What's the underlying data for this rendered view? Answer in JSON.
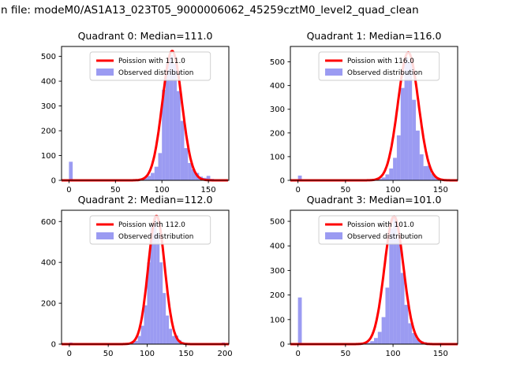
{
  "figure": {
    "title": "n file: modeM0/AS1A13_023T05_9000006062_45259cztM0_level2_quad_clean"
  },
  "colors": {
    "curve": "#ff0000",
    "bars": "#7a7aee",
    "axis": "#000000",
    "legend_border": "#cccccc"
  },
  "chart_data": [
    {
      "type": "bar",
      "subtype": "histogram-with-fit",
      "title": "Quadrant 0: Median=111.0",
      "median": 111.0,
      "legend": [
        {
          "kind": "line",
          "label": "Poission with 111.0"
        },
        {
          "kind": "patch",
          "label": "Observed distribution"
        }
      ],
      "xlim": [
        -8,
        172
      ],
      "ylim": [
        0,
        540
      ],
      "xticks": [
        0,
        50,
        100,
        150
      ],
      "yticks": [
        0,
        100,
        200,
        300,
        400,
        500
      ],
      "bin_width": 4,
      "bars": [
        [
          2,
          75
        ],
        [
          78,
          6
        ],
        [
          82,
          10
        ],
        [
          86,
          18
        ],
        [
          90,
          30
        ],
        [
          94,
          55
        ],
        [
          98,
          110
        ],
        [
          102,
          365
        ],
        [
          106,
          470
        ],
        [
          110,
          505
        ],
        [
          114,
          470
        ],
        [
          118,
          360
        ],
        [
          122,
          240
        ],
        [
          126,
          130
        ],
        [
          130,
          70
        ],
        [
          134,
          45
        ],
        [
          138,
          30
        ],
        [
          142,
          15
        ],
        [
          146,
          10
        ],
        [
          150,
          18
        ],
        [
          154,
          6
        ],
        [
          158,
          4
        ],
        [
          166,
          3
        ]
      ],
      "curve": {
        "shape": "poisson",
        "mu": 111.0,
        "sigma": 10.5,
        "peak": 522
      }
    },
    {
      "type": "bar",
      "subtype": "histogram-with-fit",
      "title": "Quadrant 1: Median=116.0",
      "median": 116.0,
      "legend": [
        {
          "kind": "line",
          "label": "Poission with 116.0"
        },
        {
          "kind": "patch",
          "label": "Observed distribution"
        }
      ],
      "xlim": [
        -8,
        168
      ],
      "ylim": [
        0,
        565
      ],
      "xticks": [
        0,
        50,
        100,
        150
      ],
      "yticks": [
        0,
        100,
        200,
        300,
        400,
        500
      ],
      "bin_width": 4,
      "bars": [
        [
          2,
          20
        ],
        [
          34,
          5
        ],
        [
          86,
          6
        ],
        [
          90,
          12
        ],
        [
          94,
          25
        ],
        [
          98,
          50
        ],
        [
          102,
          95
        ],
        [
          106,
          190
        ],
        [
          110,
          390
        ],
        [
          114,
          520
        ],
        [
          118,
          500
        ],
        [
          122,
          340
        ],
        [
          126,
          210
        ],
        [
          130,
          110
        ],
        [
          134,
          60
        ],
        [
          138,
          62
        ],
        [
          142,
          28
        ],
        [
          146,
          12
        ],
        [
          150,
          8
        ],
        [
          154,
          5
        ],
        [
          158,
          4
        ]
      ],
      "curve": {
        "shape": "poisson",
        "mu": 116.0,
        "sigma": 10.8,
        "peak": 540
      }
    },
    {
      "type": "bar",
      "subtype": "histogram-with-fit",
      "title": "Quadrant 2: Median=112.0",
      "median": 112.0,
      "legend": [
        {
          "kind": "line",
          "label": "Poission with 112.0"
        },
        {
          "kind": "patch",
          "label": "Observed distribution"
        }
      ],
      "xlim": [
        -10,
        205
      ],
      "ylim": [
        0,
        655
      ],
      "xticks": [
        0,
        50,
        100,
        150,
        200
      ],
      "yticks": [
        0,
        200,
        400,
        600
      ],
      "bin_width": 4,
      "bars": [
        [
          2,
          8
        ],
        [
          82,
          8
        ],
        [
          86,
          16
        ],
        [
          90,
          40
        ],
        [
          94,
          90
        ],
        [
          98,
          190
        ],
        [
          102,
          400
        ],
        [
          106,
          580
        ],
        [
          110,
          620
        ],
        [
          114,
          545
        ],
        [
          118,
          400
        ],
        [
          122,
          250
        ],
        [
          126,
          140
        ],
        [
          130,
          75
        ],
        [
          134,
          40
        ],
        [
          138,
          42
        ],
        [
          142,
          20
        ],
        [
          146,
          10
        ],
        [
          150,
          6
        ],
        [
          198,
          8
        ]
      ],
      "curve": {
        "shape": "poisson",
        "mu": 112.0,
        "sigma": 10.6,
        "peak": 628
      }
    },
    {
      "type": "bar",
      "subtype": "histogram-with-fit",
      "title": "Quadrant 3: Median=101.0",
      "median": 101.0,
      "legend": [
        {
          "kind": "line",
          "label": "Poission with 101.0"
        },
        {
          "kind": "patch",
          "label": "Observed distribution"
        }
      ],
      "xlim": [
        -8,
        168
      ],
      "ylim": [
        0,
        545
      ],
      "xticks": [
        0,
        50,
        100,
        150
      ],
      "yticks": [
        0,
        100,
        200,
        300,
        400,
        500
      ],
      "bin_width": 4,
      "bars": [
        [
          2,
          190
        ],
        [
          74,
          6
        ],
        [
          78,
          12
        ],
        [
          82,
          25
        ],
        [
          86,
          50
        ],
        [
          90,
          110
        ],
        [
          94,
          230
        ],
        [
          98,
          470
        ],
        [
          102,
          520
        ],
        [
          106,
          430
        ],
        [
          110,
          290
        ],
        [
          114,
          160
        ],
        [
          118,
          85
        ],
        [
          122,
          45
        ],
        [
          126,
          22
        ],
        [
          130,
          12
        ],
        [
          134,
          8
        ],
        [
          150,
          5
        ],
        [
          158,
          4
        ]
      ],
      "curve": {
        "shape": "poisson",
        "mu": 101.0,
        "sigma": 10.0,
        "peak": 520
      }
    }
  ]
}
